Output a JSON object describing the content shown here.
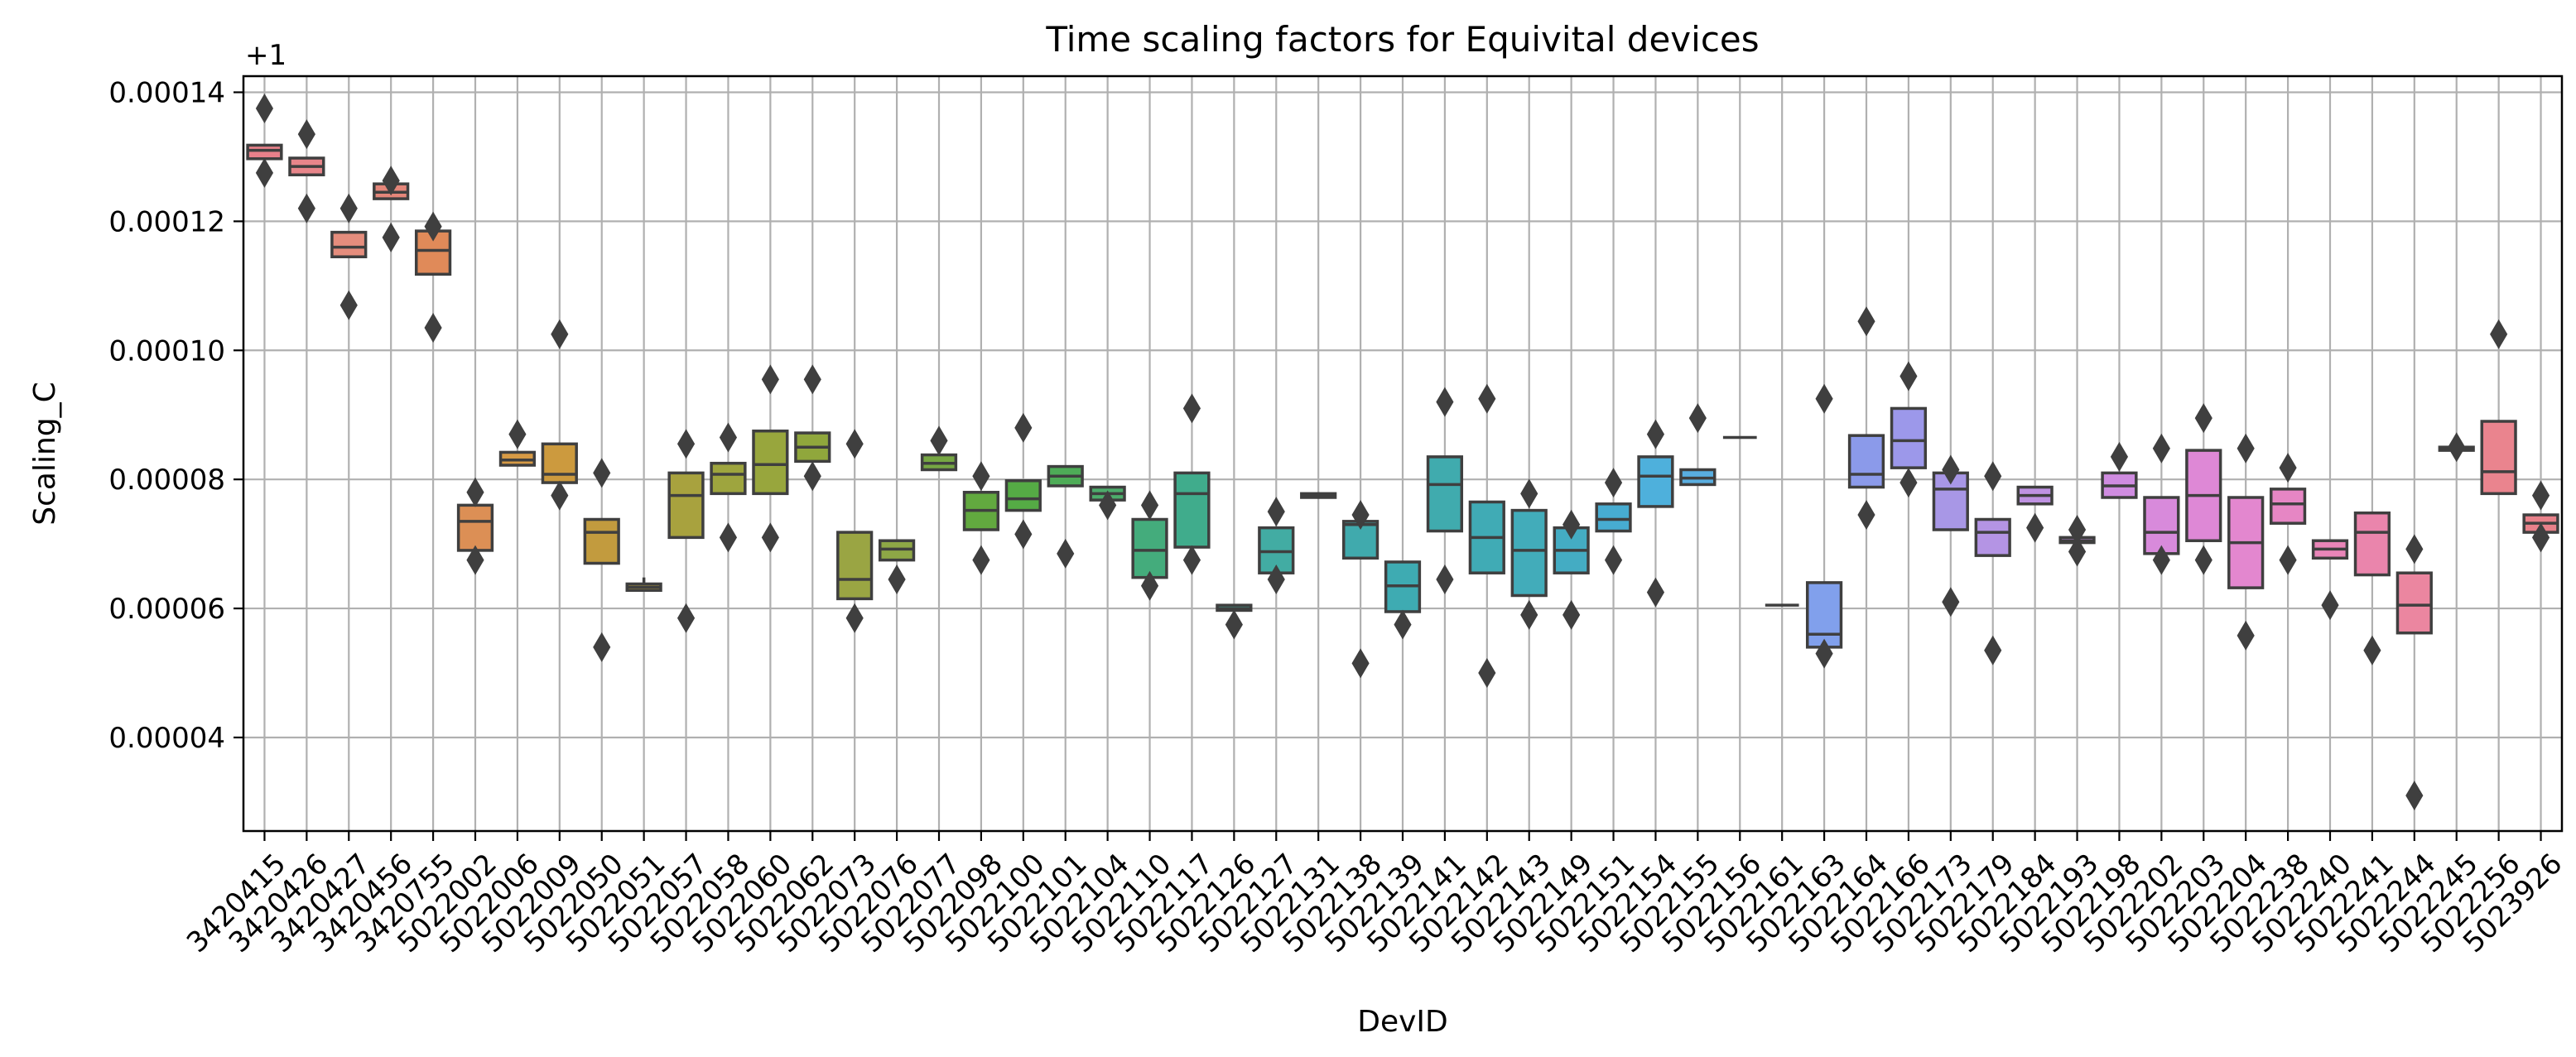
{
  "chart_data": {
    "type": "box",
    "title": "Time scaling factors for Equivital devices",
    "xlabel": "DevID",
    "ylabel": "Scaling_C",
    "offset_label": "+1",
    "ylim": [
      2.55e-05,
      0.0001425
    ],
    "yticks": [
      "0.00004",
      "0.00006",
      "0.00008",
      "0.00010",
      "0.00012",
      "0.00014"
    ],
    "yticks_values": [
      4e-05,
      6e-05,
      8e-05,
      0.0001,
      0.00012,
      0.00014
    ],
    "grid": true,
    "categories": [
      "3420415",
      "3420426",
      "3420427",
      "3420456",
      "3420755",
      "5022002",
      "5022006",
      "5022009",
      "5022050",
      "5022051",
      "5022057",
      "5022058",
      "5022060",
      "5022062",
      "5022073",
      "5022076",
      "5022077",
      "5022098",
      "5022100",
      "5022101",
      "5022104",
      "5022110",
      "5022117",
      "5022126",
      "5022127",
      "5022131",
      "5022138",
      "5022139",
      "5022141",
      "5022142",
      "5022143",
      "5022149",
      "5022151",
      "5022154",
      "5022155",
      "5022156",
      "5022161",
      "5022163",
      "5022164",
      "5022166",
      "5022173",
      "5022179",
      "5022184",
      "5022193",
      "5022198",
      "5022202",
      "5022203",
      "5022204",
      "5022238",
      "5022240",
      "5022241",
      "5022244",
      "5022245",
      "5022256",
      "5023926"
    ],
    "colors": [
      "#e8808a",
      "#e8858a",
      "#e58d7d",
      "#e4867a",
      "#e08a59",
      "#dc8f55",
      "#d69a45",
      "#cc9a3e",
      "#c29b3e",
      "#b39f3c",
      "#a8a23e",
      "#9ea53e",
      "#98a63d",
      "#90a73c",
      "#9aa543",
      "#8ea746",
      "#76a743",
      "#62a93f",
      "#55ab45",
      "#4eac57",
      "#4dac6b",
      "#44ac7c",
      "#40ac8c",
      "#42ad99",
      "#42aca3",
      "#41aaab",
      "#40aaad",
      "#3eabb2",
      "#40abae",
      "#40abb5",
      "#42acba",
      "#44acc3",
      "#47acd1",
      "#4eb0dc",
      "#59aee0",
      "#63aaec",
      "#72a4ec",
      "#81a0ec",
      "#8b9aea",
      "#9c98ea",
      "#a897e6",
      "#b494e4",
      "#bf92e2",
      "#c48fe2",
      "#cf8ce0",
      "#d88adb",
      "#de88d6",
      "#e387cf",
      "#e686c4",
      "#e985b8",
      "#ea85ac",
      "#eb86a0",
      "#ec8696",
      "#ea848e",
      "#e8818a"
    ],
    "boxes": [
      {
        "q1": 0.0001297,
        "med": 0.000131,
        "q3": 0.0001318,
        "lo": 0.0001297,
        "hi": 0.0001318,
        "fl": [
          0.0001275,
          0.0001375
        ]
      },
      {
        "q1": 0.0001272,
        "med": 0.0001285,
        "q3": 0.0001298,
        "lo": 0.0001272,
        "hi": 0.0001298,
        "fl": [
          0.000122,
          0.0001335
        ]
      },
      {
        "q1": 0.0001145,
        "med": 0.000116,
        "q3": 0.0001183,
        "lo": 0.0001145,
        "hi": 0.0001183,
        "fl": [
          0.000107,
          0.000122
        ]
      },
      {
        "q1": 0.0001235,
        "med": 0.0001245,
        "q3": 0.0001258,
        "lo": 0.0001235,
        "hi": 0.0001258,
        "fl": [
          0.0001175,
          0.0001263
        ]
      },
      {
        "q1": 0.0001118,
        "med": 0.0001155,
        "q3": 0.0001185,
        "lo": 0.0001118,
        "hi": 0.0001185,
        "fl": [
          0.0001035,
          0.0001192
        ]
      },
      {
        "q1": 6.9e-05,
        "med": 7.35e-05,
        "q3": 7.6e-05,
        "lo": 6.9e-05,
        "hi": 7.6e-05,
        "fl": [
          6.75e-05,
          7.8e-05
        ]
      },
      {
        "q1": 8.22e-05,
        "med": 8.3e-05,
        "q3": 8.42e-05,
        "lo": 8.22e-05,
        "hi": 8.42e-05,
        "fl": [
          8.7e-05
        ]
      },
      {
        "q1": 7.95e-05,
        "med": 8.08e-05,
        "q3": 8.55e-05,
        "lo": 7.95e-05,
        "hi": 8.55e-05,
        "fl": [
          7.75e-05,
          0.0001025
        ]
      },
      {
        "q1": 6.7e-05,
        "med": 7.18e-05,
        "q3": 7.38e-05,
        "lo": 6.7e-05,
        "hi": 7.38e-05,
        "fl": [
          5.4e-05,
          8.1e-05
        ]
      },
      {
        "q1": 6.28e-05,
        "med": 6.33e-05,
        "q3": 6.38e-05,
        "lo": 6.28e-05,
        "hi": 6.48e-05,
        "fl": []
      },
      {
        "q1": 7.1e-05,
        "med": 7.75e-05,
        "q3": 8.1e-05,
        "lo": 7.1e-05,
        "hi": 8.1e-05,
        "fl": [
          5.85e-05,
          8.55e-05
        ]
      },
      {
        "q1": 7.78e-05,
        "med": 8.08e-05,
        "q3": 8.25e-05,
        "lo": 7.78e-05,
        "hi": 8.25e-05,
        "fl": [
          7.1e-05,
          8.65e-05
        ]
      },
      {
        "q1": 7.78e-05,
        "med": 8.23e-05,
        "q3": 8.75e-05,
        "lo": 7.78e-05,
        "hi": 8.75e-05,
        "fl": [
          7.1e-05,
          9.55e-05
        ]
      },
      {
        "q1": 8.28e-05,
        "med": 8.5e-05,
        "q3": 8.72e-05,
        "lo": 8.28e-05,
        "hi": 8.72e-05,
        "fl": [
          8.05e-05,
          9.55e-05
        ]
      },
      {
        "q1": 6.15e-05,
        "med": 6.45e-05,
        "q3": 7.18e-05,
        "lo": 6.15e-05,
        "hi": 7.18e-05,
        "fl": [
          5.85e-05,
          8.55e-05
        ]
      },
      {
        "q1": 6.75e-05,
        "med": 6.92e-05,
        "q3": 7.05e-05,
        "lo": 6.75e-05,
        "hi": 7.05e-05,
        "fl": [
          6.45e-05
        ]
      },
      {
        "q1": 8.15e-05,
        "med": 8.25e-05,
        "q3": 8.38e-05,
        "lo": 8.15e-05,
        "hi": 8.38e-05,
        "fl": [
          8.6e-05
        ]
      },
      {
        "q1": 7.22e-05,
        "med": 7.52e-05,
        "q3": 7.8e-05,
        "lo": 7.22e-05,
        "hi": 7.8e-05,
        "fl": [
          6.75e-05,
          8.05e-05
        ]
      },
      {
        "q1": 7.52e-05,
        "med": 7.7e-05,
        "q3": 7.98e-05,
        "lo": 7.52e-05,
        "hi": 7.98e-05,
        "fl": [
          7.15e-05,
          8.8e-05
        ]
      },
      {
        "q1": 7.9e-05,
        "med": 8.05e-05,
        "q3": 8.2e-05,
        "lo": 7.9e-05,
        "hi": 8.2e-05,
        "fl": [
          6.85e-05
        ]
      },
      {
        "q1": 7.68e-05,
        "med": 7.78e-05,
        "q3": 7.88e-05,
        "lo": 7.68e-05,
        "hi": 7.88e-05,
        "fl": [
          7.6e-05
        ]
      },
      {
        "q1": 6.48e-05,
        "med": 6.9e-05,
        "q3": 7.38e-05,
        "lo": 6.48e-05,
        "hi": 7.38e-05,
        "fl": [
          6.35e-05,
          7.6e-05
        ]
      },
      {
        "q1": 6.95e-05,
        "med": 7.78e-05,
        "q3": 8.1e-05,
        "lo": 6.95e-05,
        "hi": 8.1e-05,
        "fl": [
          6.75e-05,
          9.1e-05
        ]
      },
      {
        "q1": 5.97e-05,
        "med": 6e-05,
        "q3": 6.05e-05,
        "lo": 5.97e-05,
        "hi": 6.05e-05,
        "fl": [
          5.75e-05
        ]
      },
      {
        "q1": 6.55e-05,
        "med": 6.88e-05,
        "q3": 7.25e-05,
        "lo": 6.55e-05,
        "hi": 7.25e-05,
        "fl": [
          6.45e-05,
          7.5e-05
        ]
      },
      {
        "q1": 7.72e-05,
        "med": 7.75e-05,
        "q3": 7.78e-05,
        "lo": 7.7e-05,
        "hi": 7.8e-05,
        "fl": []
      },
      {
        "q1": 6.78e-05,
        "med": 7.3e-05,
        "q3": 7.35e-05,
        "lo": 6.78e-05,
        "hi": 7.35e-05,
        "fl": [
          5.15e-05,
          7.45e-05
        ]
      },
      {
        "q1": 5.95e-05,
        "med": 6.35e-05,
        "q3": 6.72e-05,
        "lo": 5.95e-05,
        "hi": 6.72e-05,
        "fl": [
          5.75e-05
        ]
      },
      {
        "q1": 7.2e-05,
        "med": 7.92e-05,
        "q3": 8.35e-05,
        "lo": 7.2e-05,
        "hi": 8.35e-05,
        "fl": [
          6.45e-05,
          9.2e-05
        ]
      },
      {
        "q1": 6.55e-05,
        "med": 7.1e-05,
        "q3": 7.65e-05,
        "lo": 6.55e-05,
        "hi": 7.65e-05,
        "fl": [
          5e-05,
          9.25e-05
        ]
      },
      {
        "q1": 6.2e-05,
        "med": 6.9e-05,
        "q3": 7.52e-05,
        "lo": 6.2e-05,
        "hi": 7.52e-05,
        "fl": [
          5.9e-05,
          7.78e-05
        ]
      },
      {
        "q1": 6.55e-05,
        "med": 6.9e-05,
        "q3": 7.25e-05,
        "lo": 6.55e-05,
        "hi": 7.25e-05,
        "fl": [
          5.9e-05,
          7.3e-05
        ]
      },
      {
        "q1": 7.2e-05,
        "med": 7.38e-05,
        "q3": 7.62e-05,
        "lo": 7.2e-05,
        "hi": 7.62e-05,
        "fl": [
          6.75e-05,
          7.95e-05
        ]
      },
      {
        "q1": 7.58e-05,
        "med": 8.05e-05,
        "q3": 8.35e-05,
        "lo": 7.58e-05,
        "hi": 8.35e-05,
        "fl": [
          6.25e-05,
          8.7e-05
        ]
      },
      {
        "q1": 7.92e-05,
        "med": 8.02e-05,
        "q3": 8.15e-05,
        "lo": 7.92e-05,
        "hi": 8.15e-05,
        "fl": [
          8.95e-05
        ]
      },
      {
        "q1": 8.65e-05,
        "med": 8.65e-05,
        "q3": 8.65e-05,
        "lo": 8.65e-05,
        "hi": 8.65e-05,
        "fl": []
      },
      {
        "q1": 6.05e-05,
        "med": 6.05e-05,
        "q3": 6.05e-05,
        "lo": 6.05e-05,
        "hi": 6.05e-05,
        "fl": []
      },
      {
        "q1": 5.4e-05,
        "med": 5.6e-05,
        "q3": 6.4e-05,
        "lo": 5.4e-05,
        "hi": 6.4e-05,
        "fl": [
          5.3e-05,
          9.25e-05
        ]
      },
      {
        "q1": 7.88e-05,
        "med": 8.08e-05,
        "q3": 8.68e-05,
        "lo": 7.88e-05,
        "hi": 8.68e-05,
        "fl": [
          7.45e-05,
          0.0001045
        ]
      },
      {
        "q1": 8.18e-05,
        "med": 8.6e-05,
        "q3": 9.1e-05,
        "lo": 8.18e-05,
        "hi": 9.1e-05,
        "fl": [
          7.95e-05,
          9.6e-05
        ]
      },
      {
        "q1": 7.22e-05,
        "med": 7.85e-05,
        "q3": 8.1e-05,
        "lo": 7.22e-05,
        "hi": 8.1e-05,
        "fl": [
          6.1e-05,
          8.15e-05
        ]
      },
      {
        "q1": 6.82e-05,
        "med": 7.18e-05,
        "q3": 7.38e-05,
        "lo": 6.82e-05,
        "hi": 7.38e-05,
        "fl": [
          5.35e-05,
          8.05e-05
        ]
      },
      {
        "q1": 7.62e-05,
        "med": 7.75e-05,
        "q3": 7.88e-05,
        "lo": 7.62e-05,
        "hi": 7.88e-05,
        "fl": [
          7.25e-05
        ]
      },
      {
        "q1": 7.02e-05,
        "med": 7.05e-05,
        "q3": 7.1e-05,
        "lo": 6.98e-05,
        "hi": 7.12e-05,
        "fl": [
          6.88e-05,
          7.22e-05
        ]
      },
      {
        "q1": 7.72e-05,
        "med": 7.9e-05,
        "q3": 8.1e-05,
        "lo": 7.72e-05,
        "hi": 8.1e-05,
        "fl": [
          8.35e-05
        ]
      },
      {
        "q1": 6.85e-05,
        "med": 7.18e-05,
        "q3": 7.72e-05,
        "lo": 6.85e-05,
        "hi": 7.72e-05,
        "fl": [
          6.75e-05,
          8.48e-05
        ]
      },
      {
        "q1": 7.05e-05,
        "med": 7.75e-05,
        "q3": 8.45e-05,
        "lo": 7.05e-05,
        "hi": 8.45e-05,
        "fl": [
          6.75e-05,
          8.95e-05
        ]
      },
      {
        "q1": 6.32e-05,
        "med": 7.02e-05,
        "q3": 7.72e-05,
        "lo": 6.32e-05,
        "hi": 7.72e-05,
        "fl": [
          5.58e-05,
          8.48e-05
        ]
      },
      {
        "q1": 7.32e-05,
        "med": 7.62e-05,
        "q3": 7.85e-05,
        "lo": 7.32e-05,
        "hi": 7.85e-05,
        "fl": [
          6.75e-05,
          8.18e-05
        ]
      },
      {
        "q1": 6.78e-05,
        "med": 6.92e-05,
        "q3": 7.05e-05,
        "lo": 6.78e-05,
        "hi": 7.05e-05,
        "fl": [
          6.05e-05
        ]
      },
      {
        "q1": 6.52e-05,
        "med": 7.18e-05,
        "q3": 7.48e-05,
        "lo": 6.52e-05,
        "hi": 7.48e-05,
        "fl": [
          5.35e-05
        ]
      },
      {
        "q1": 5.62e-05,
        "med": 6.05e-05,
        "q3": 6.55e-05,
        "lo": 5.62e-05,
        "hi": 6.55e-05,
        "fl": [
          3.1e-05,
          6.92e-05
        ]
      },
      {
        "q1": 8.45e-05,
        "med": 8.48e-05,
        "q3": 8.5e-05,
        "lo": 8.42e-05,
        "hi": 8.55e-05,
        "fl": [
          8.5e-05
        ]
      },
      {
        "q1": 7.78e-05,
        "med": 8.12e-05,
        "q3": 8.9e-05,
        "lo": 7.78e-05,
        "hi": 8.9e-05,
        "fl": [
          0.0001025
        ]
      },
      {
        "q1": 7.18e-05,
        "med": 7.32e-05,
        "q3": 7.45e-05,
        "lo": 7.18e-05,
        "hi": 7.45e-05,
        "fl": [
          7.1e-05,
          7.75e-05
        ]
      }
    ]
  }
}
